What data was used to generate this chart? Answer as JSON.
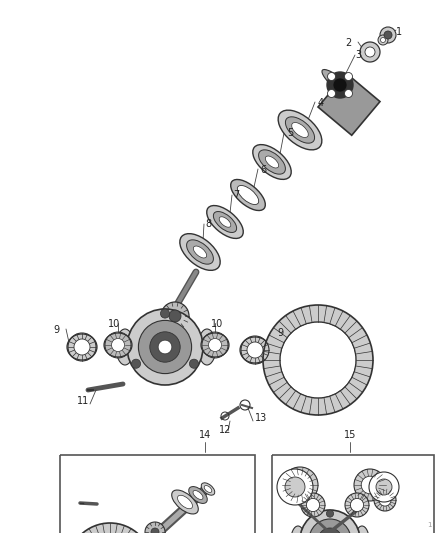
{
  "bg_color": "#ffffff",
  "lc": "#333333",
  "lc_dark": "#111111",
  "gray_light": "#cccccc",
  "gray_med": "#999999",
  "gray_dark": "#555555",
  "gray_darker": "#333333",
  "figw": 4.38,
  "figh": 5.33,
  "dpi": 100,
  "label_fs": 7,
  "label_color": "#222222"
}
